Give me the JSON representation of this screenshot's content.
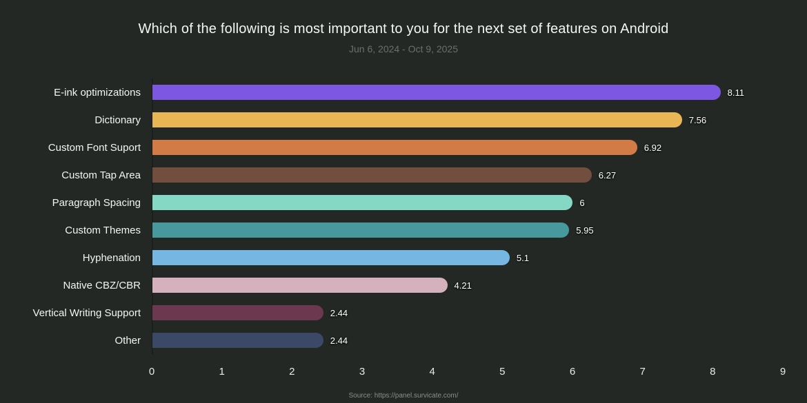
{
  "chart_data": {
    "type": "bar",
    "orientation": "horizontal",
    "title": "Which of the following is most important to you for the next set of features on Android",
    "subtitle": "Jun 6, 2024 - Oct 9, 2025",
    "categories": [
      "E-ink optimizations",
      "Dictionary",
      "Custom Font Suport",
      "Custom Tap Area",
      "Paragraph Spacing",
      "Custom Themes",
      "Hyphenation",
      "Native CBZ/CBR",
      "Vertical Writing Support",
      "Other"
    ],
    "values": [
      8.11,
      7.56,
      6.92,
      6.27,
      6,
      5.95,
      5.1,
      4.21,
      2.44,
      2.44
    ],
    "value_labels": [
      "8.11",
      "7.56",
      "6.92",
      "6.27",
      "6",
      "5.95",
      "5.1",
      "4.21",
      "2.44",
      "2.44"
    ],
    "bar_colors": [
      "#7d56e2",
      "#e8b654",
      "#d27b47",
      "#714e3d",
      "#85d9c4",
      "#47999e",
      "#75b7e2",
      "#d4b1bd",
      "#6c3850",
      "#3b4866"
    ],
    "xlim": [
      0,
      9
    ],
    "x_ticks": [
      "0",
      "1",
      "2",
      "3",
      "4",
      "5",
      "6",
      "7",
      "8",
      "9"
    ],
    "grid": false,
    "legend": "none",
    "value_labels_position": "right-of-bar"
  },
  "footer": {
    "source": "Source: https://panel.survicate.com/"
  },
  "colors": {
    "background": "#232825",
    "title": "#f4f6f5",
    "subtitle": "#6b6f6d",
    "category_label": "#f3f5f4",
    "value_label": "#ffffff",
    "tick_label": "#e9ebea",
    "axis_line": "#1a1e1c",
    "footer_text": "#8b8e8c"
  }
}
